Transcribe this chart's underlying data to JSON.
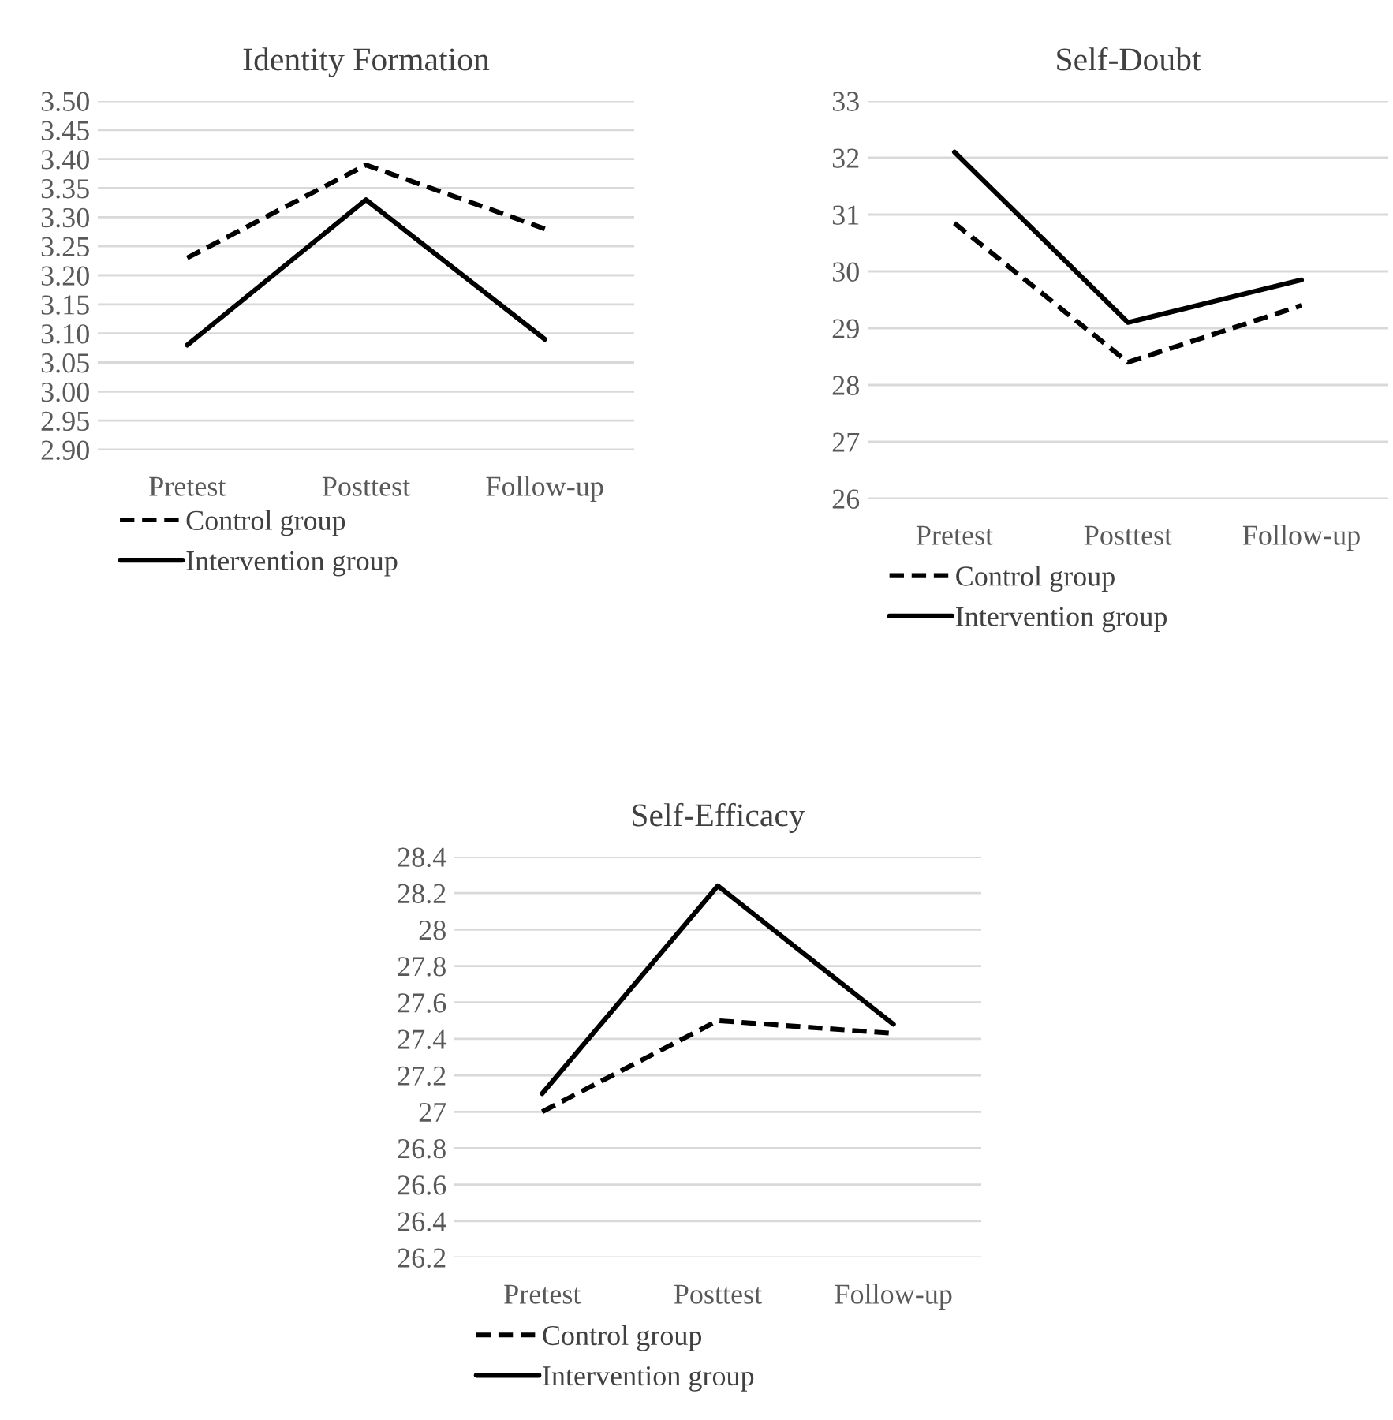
{
  "chart_data": [
    {
      "type": "line",
      "title": "Identity Formation",
      "categories": [
        "Pretest",
        "Posttest",
        "Follow-up"
      ],
      "series": [
        {
          "name": "Control group",
          "color": "#000000",
          "line_style": "dashed",
          "values": [
            3.23,
            3.39,
            3.28
          ]
        },
        {
          "name": "Intervention group",
          "color": "#000000",
          "line_style": "solid",
          "values": [
            3.08,
            3.33,
            3.09
          ]
        }
      ],
      "ylim": [
        2.9,
        3.5
      ],
      "yticks": [
        {
          "value": 2.9,
          "label": "2.90"
        },
        {
          "value": 2.95,
          "label": "2.95"
        },
        {
          "value": 3.0,
          "label": "3.00"
        },
        {
          "value": 3.05,
          "label": "3.05"
        },
        {
          "value": 3.1,
          "label": "3.10"
        },
        {
          "value": 3.15,
          "label": "3.15"
        },
        {
          "value": 3.2,
          "label": "3.20"
        },
        {
          "value": 3.25,
          "label": "3.25"
        },
        {
          "value": 3.3,
          "label": "3.30"
        },
        {
          "value": 3.35,
          "label": "3.35"
        },
        {
          "value": 3.4,
          "label": "3.40"
        },
        {
          "value": 3.45,
          "label": "3.45"
        },
        {
          "value": 3.5,
          "label": "3.50"
        }
      ],
      "grid": "y",
      "legend": "bottom"
    },
    {
      "type": "line",
      "title": "Self-Doubt",
      "categories": [
        "Pretest",
        "Posttest",
        "Follow-up"
      ],
      "series": [
        {
          "name": "Control group",
          "color": "#000000",
          "line_style": "dashed",
          "values": [
            30.85,
            28.4,
            29.4
          ]
        },
        {
          "name": "Intervention group",
          "color": "#000000",
          "line_style": "solid",
          "values": [
            32.1,
            29.1,
            29.85
          ]
        }
      ],
      "ylim": [
        26,
        33
      ],
      "yticks": [
        26,
        27,
        28,
        29,
        30,
        31,
        32,
        33
      ],
      "grid": "y",
      "legend": "bottom"
    },
    {
      "type": "line",
      "title": "Self-Efficacy",
      "categories": [
        "Pretest",
        "Posttest",
        "Follow-up"
      ],
      "series": [
        {
          "name": "Control group",
          "color": "#000000",
          "line_style": "dashed",
          "values": [
            27.0,
            27.5,
            27.43
          ]
        },
        {
          "name": "Intervention group",
          "color": "#000000",
          "line_style": "solid",
          "values": [
            27.1,
            28.24,
            27.48
          ]
        }
      ],
      "ylim": [
        26.2,
        28.4
      ],
      "yticks": [
        26.2,
        26.4,
        26.6,
        26.8,
        27,
        27.2,
        27.4,
        27.6,
        27.8,
        28,
        28.2,
        28.4
      ],
      "grid": "y",
      "legend": "bottom"
    }
  ]
}
